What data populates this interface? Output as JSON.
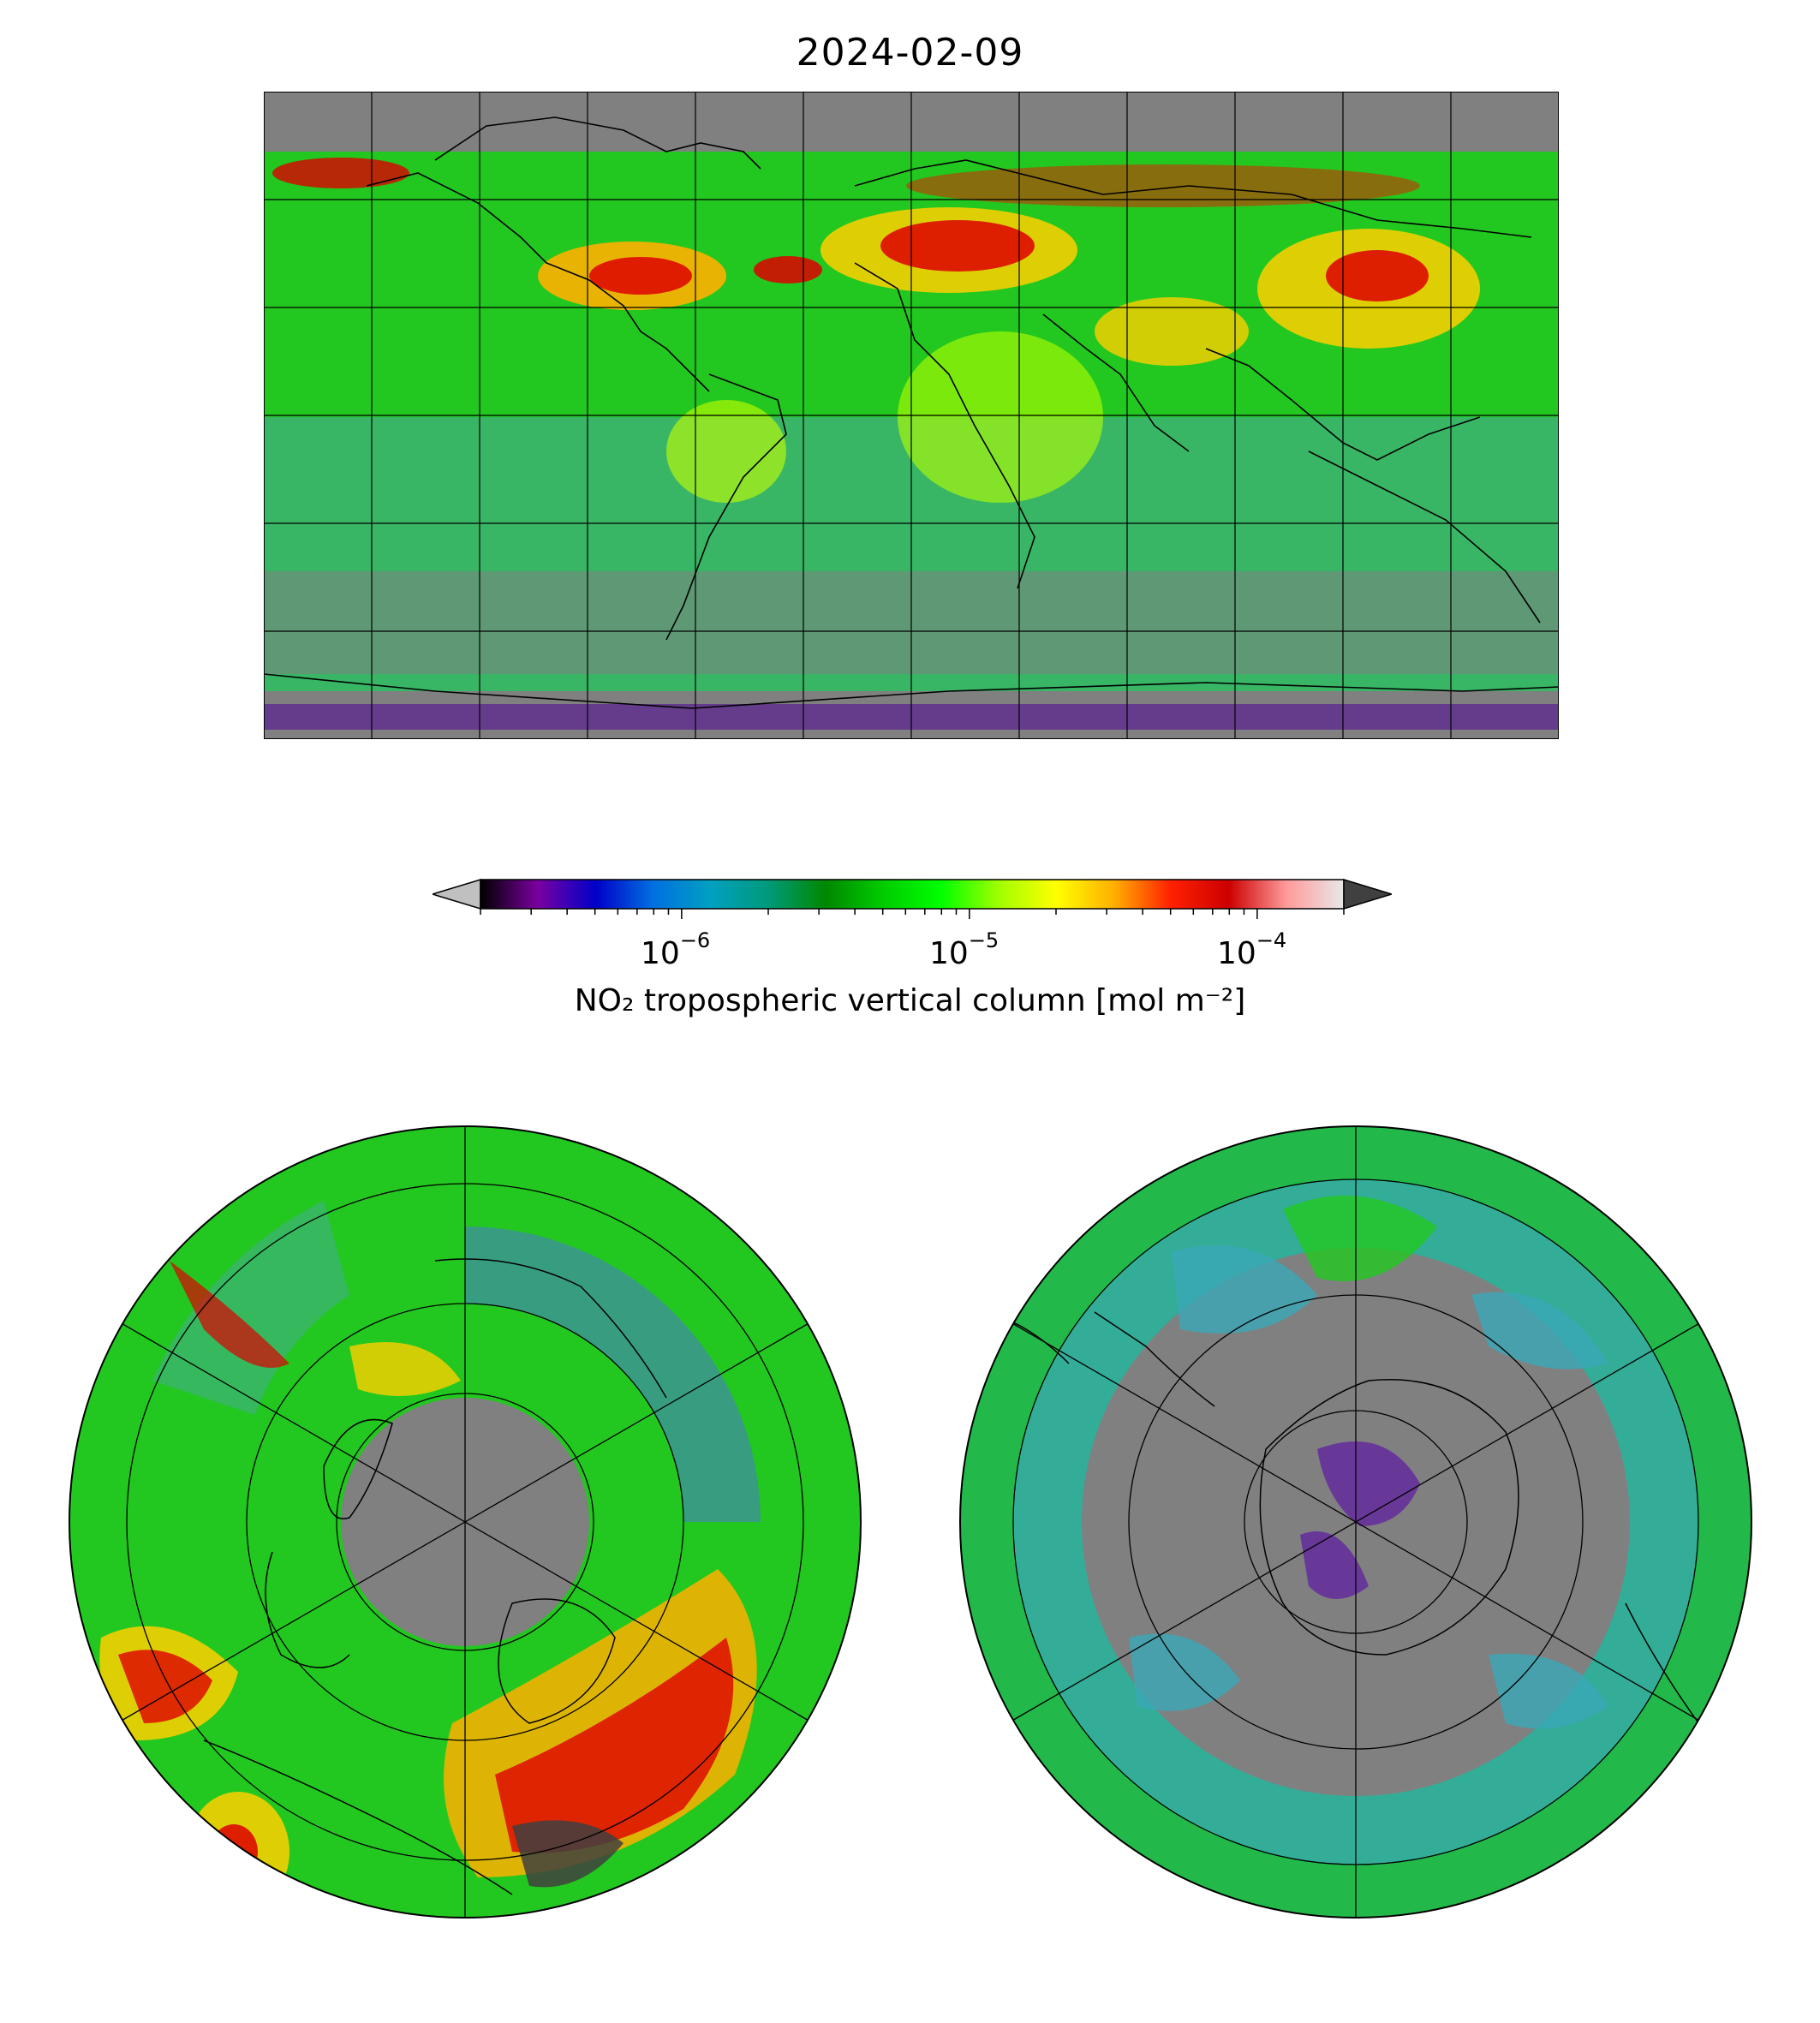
{
  "figure": {
    "title": "2024-02-09"
  },
  "colorbar": {
    "label": "NO₂ tropospheric vertical column [mol m⁻²]",
    "ticks": [
      {
        "base": "10",
        "exponent": "−6",
        "value": 1e-06
      },
      {
        "base": "10",
        "exponent": "−5",
        "value": 1e-05
      },
      {
        "base": "10",
        "exponent": "−4",
        "value": 0.0001
      }
    ],
    "range_min": 2e-07,
    "range_max": 0.0002,
    "scale": "log",
    "extend": "both",
    "under_color": "#c0c0c0",
    "over_color": "#404040",
    "stops": [
      "#000000",
      "#7a00a0",
      "#0000c8",
      "#0070e0",
      "#00a0c0",
      "#009a7a",
      "#008800",
      "#00cc00",
      "#00ff00",
      "#a0ff00",
      "#ffff00",
      "#ffb000",
      "#ff2000",
      "#cc0000",
      "#ff9a9a",
      "#e8e8e8"
    ]
  },
  "maps": {
    "global": {
      "projection": "Plate Carrée",
      "no_data_color": "#808080",
      "gridlines": {
        "lon_step_deg": 30,
        "lat_step_deg": 30
      }
    },
    "north_polar": {
      "projection": "North Polar Stereographic",
      "no_data_color": "#808080"
    },
    "south_polar": {
      "projection": "South Polar Stereographic",
      "no_data_color": "#808080"
    }
  }
}
